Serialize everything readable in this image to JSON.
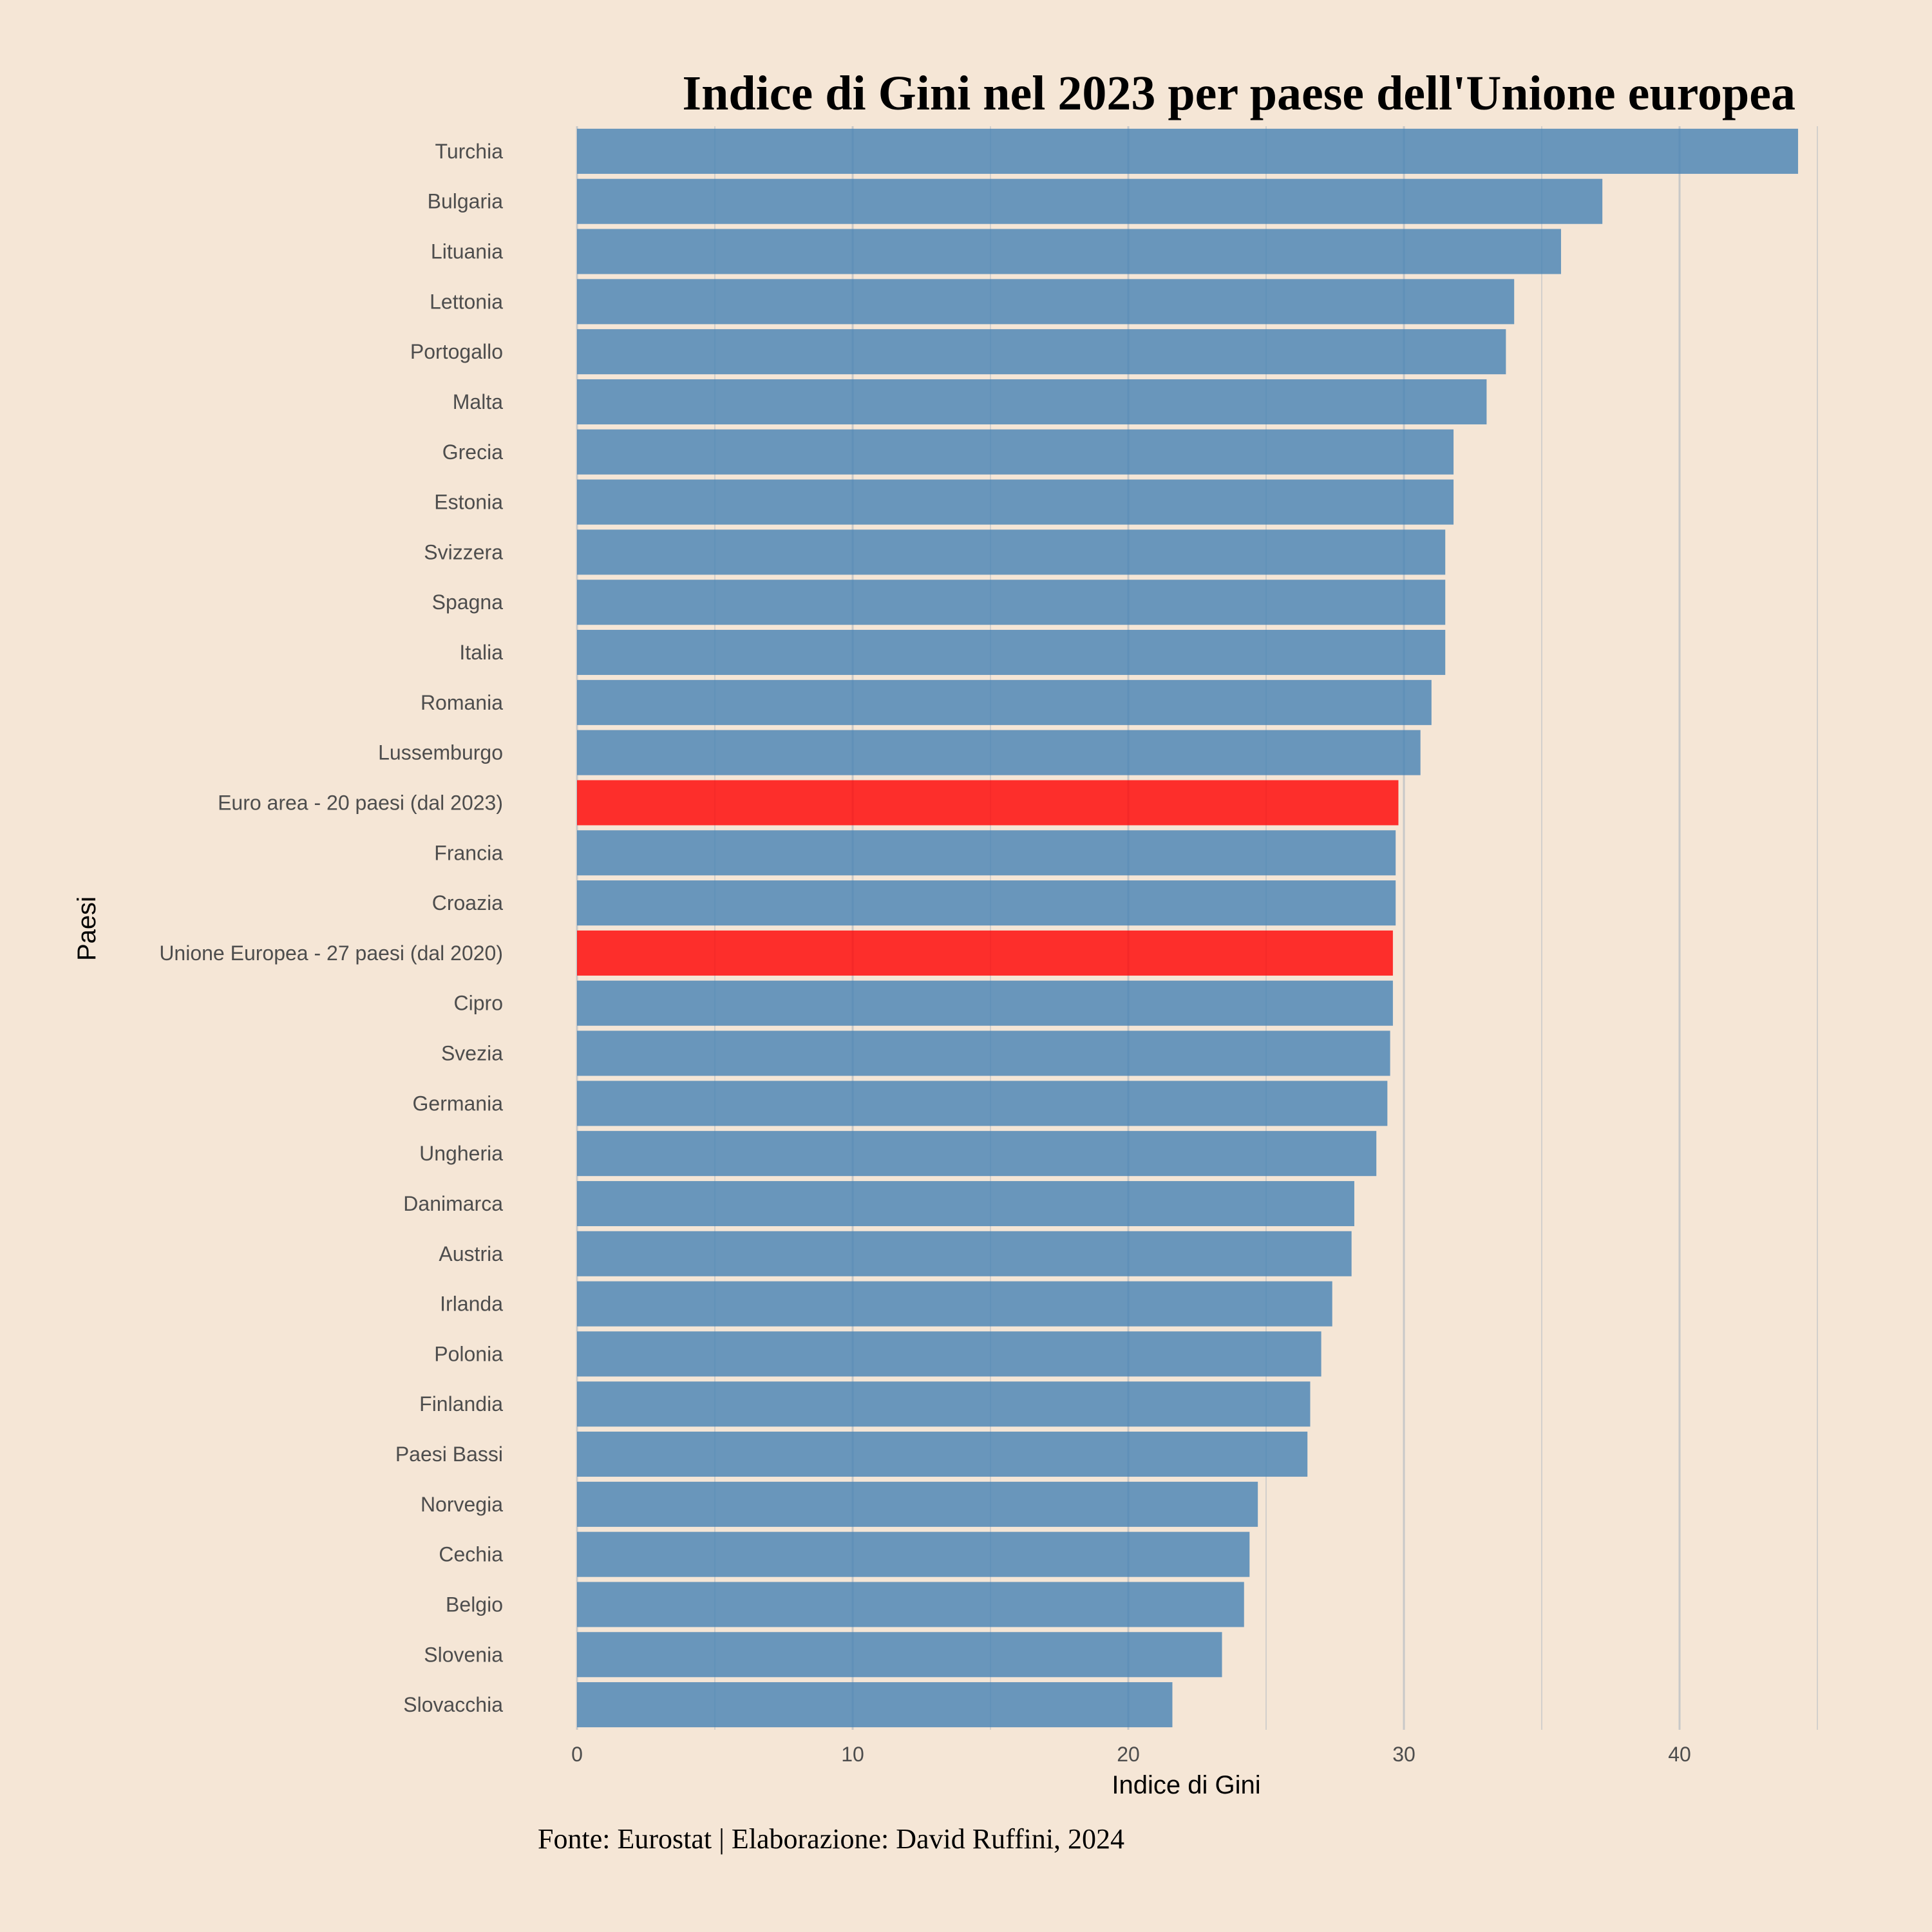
{
  "colors": {
    "background": "#f5e6d6",
    "bar_default": "#4682b4",
    "bar_highlight": "#ff0000",
    "gridline": "#c8c8c8"
  },
  "caption": "Fonte: Eurostat | Elaborazione: David Ruffini, 2024",
  "chart_data": {
    "type": "bar",
    "orientation": "horizontal",
    "title": "Indice di Gini nel 2023 per paese dell'Unione europea",
    "xlabel": "Indice di Gini",
    "ylabel": "Paesi",
    "xlim": [
      0,
      45
    ],
    "x_ticks": [
      0,
      10,
      20,
      30,
      40
    ],
    "grid": "vertical",
    "categories": [
      "Turchia",
      "Bulgaria",
      "Lituania",
      "Lettonia",
      "Portogallo",
      "Malta",
      "Grecia",
      "Estonia",
      "Svizzera",
      "Spagna",
      "Italia",
      "Romania",
      "Lussemburgo",
      "Euro area - 20 paesi (dal 2023)",
      "Francia",
      "Croazia",
      "Unione Europea - 27 paesi (dal 2020)",
      "Cipro",
      "Svezia",
      "Germania",
      "Ungheria",
      "Danimarca",
      "Austria",
      "Irlanda",
      "Polonia",
      "Finlandia",
      "Paesi Bassi",
      "Norvegia",
      "Cechia",
      "Belgio",
      "Slovenia",
      "Slovacchia"
    ],
    "values": [
      44.3,
      37.2,
      35.7,
      34.0,
      33.7,
      33.0,
      31.8,
      31.8,
      31.5,
      31.5,
      31.5,
      31.0,
      30.6,
      29.8,
      29.7,
      29.7,
      29.6,
      29.6,
      29.5,
      29.4,
      29.0,
      28.2,
      28.1,
      27.4,
      27.0,
      26.6,
      26.5,
      24.7,
      24.4,
      24.2,
      23.4,
      21.6
    ],
    "highlighted": [
      "Euro area - 20 paesi (dal 2023)",
      "Unione Europea - 27 paesi (dal 2020)"
    ]
  }
}
